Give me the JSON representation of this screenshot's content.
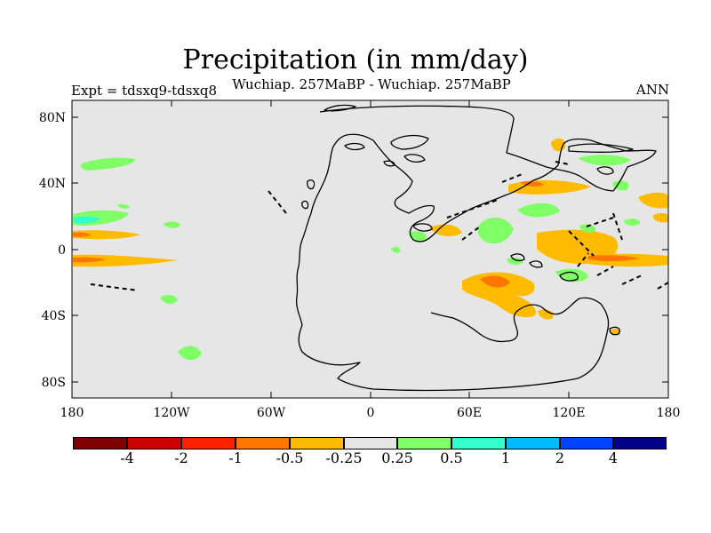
{
  "header": {
    "title": "Precipitation (in mm/day)",
    "subtitle": "Wuchiap. 257MaBP - Wuchiap. 257MaBP",
    "left_label": "Expt = tdsxq9-tdsxq8",
    "right_label": "ANN"
  },
  "axes": {
    "x_ticks": [
      "180",
      "120W",
      "60W",
      "0",
      "60E",
      "120E",
      "180"
    ],
    "y_ticks": [
      "80N",
      "40N",
      "0",
      "40S",
      "80S"
    ]
  },
  "legend": {
    "colors": [
      "#7f0000",
      "#cc0000",
      "#ff2200",
      "#ff7700",
      "#ffbb00",
      "#e6e6e6",
      "#80ff66",
      "#33ffcc",
      "#00bbff",
      "#0044ff",
      "#000088"
    ],
    "labels": [
      "-4",
      "-2",
      "-1",
      "-0.5",
      "-0.25",
      "0.25",
      "0.5",
      "1",
      "2",
      "4"
    ]
  },
  "colors": {
    "background_fill": "#e6e6e6",
    "coastline": "#000000"
  }
}
